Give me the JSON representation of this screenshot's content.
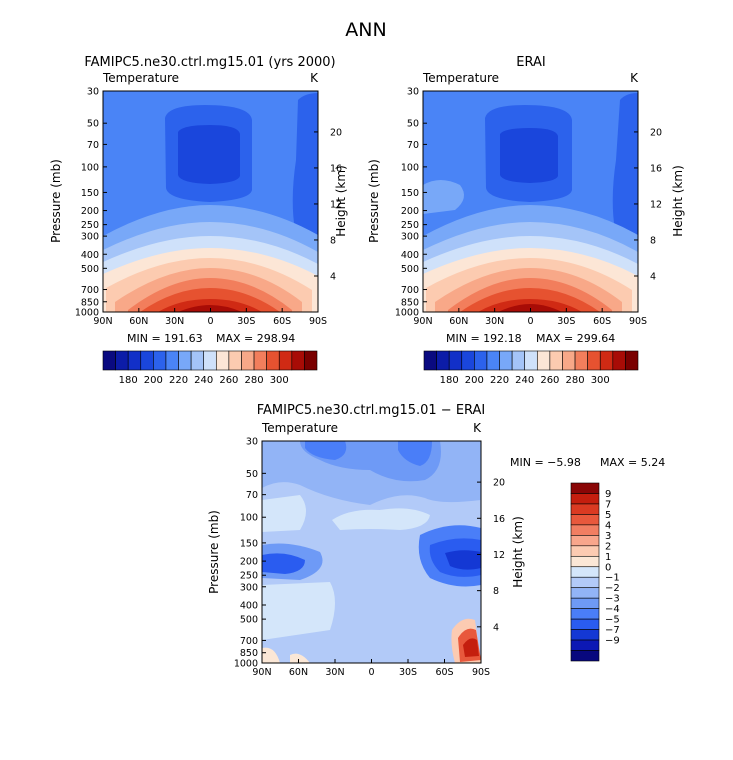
{
  "page_title": "ANN",
  "colors": {
    "temperature_scale": [
      "#0a0a80",
      "#0c1ca8",
      "#1230c8",
      "#1a46dc",
      "#2c62ec",
      "#4a84f6",
      "#78a8f8",
      "#a4c4f8",
      "#cfe1fa",
      "#fce6d6",
      "#fccbb0",
      "#f8a888",
      "#f27e5c",
      "#e65230",
      "#d02a14",
      "#a80c06",
      "#7a0000"
    ],
    "difference_scale": [
      "#08087e",
      "#0c18b4",
      "#1438d4",
      "#2a5cf0",
      "#4a7ef8",
      "#6e9af6",
      "#92b4f6",
      "#b2caf8",
      "#d4e6fa",
      "#fbe7d6",
      "#fccbb2",
      "#f8a68c",
      "#f17e62",
      "#e8583c",
      "#da3a22",
      "#c41e0e",
      "#8a0606"
    ]
  },
  "chart_data": [
    {
      "type": "heatmap",
      "panel": "model",
      "title": "FAMIPC5.ne30.ctrl.mg15.01 (yrs 2000)",
      "subtitle_left": "Temperature",
      "subtitle_right": "K",
      "ylabel": "Pressure (mb)",
      "ylabel_right": "Height (km)",
      "x_ticks": [
        "90N",
        "60N",
        "30N",
        "0",
        "30S",
        "60S",
        "90S"
      ],
      "y_ticks": [
        30,
        50,
        70,
        100,
        150,
        200,
        250,
        300,
        400,
        500,
        700,
        850,
        1000
      ],
      "height_ticks": [
        4,
        8,
        12,
        16,
        20
      ],
      "y_log_scale": true,
      "min_label": "MIN = 191.63",
      "max_label": "MAX = 298.94",
      "colorbar_ticks": [
        "180",
        "190",
        "200",
        "210",
        "220",
        "230",
        "240",
        "250",
        "260",
        "270",
        "280",
        "290",
        "300"
      ],
      "colorbar_levels": [
        180,
        190,
        200,
        210,
        220,
        230,
        240,
        250,
        260,
        270,
        280,
        290,
        300
      ],
      "field": {
        "min": 191.63,
        "max": 298.94,
        "tropopause_cold_core": "0",
        "surface_warm_max_lat": "0"
      }
    },
    {
      "type": "heatmap",
      "panel": "obs",
      "title": "ERAI",
      "subtitle_left": "Temperature",
      "subtitle_right": "K",
      "ylabel": "Pressure (mb)",
      "ylabel_right": "Height (km)",
      "x_ticks": [
        "90N",
        "60N",
        "30N",
        "0",
        "30S",
        "60S",
        "90S"
      ],
      "y_ticks": [
        30,
        50,
        70,
        100,
        150,
        200,
        250,
        300,
        400,
        500,
        700,
        850,
        1000
      ],
      "height_ticks": [
        4,
        8,
        12,
        16,
        20
      ],
      "y_log_scale": true,
      "min_label": "MIN = 192.18",
      "max_label": "MAX = 299.64",
      "colorbar_ticks": [
        "180",
        "190",
        "200",
        "210",
        "220",
        "230",
        "240",
        "250",
        "260",
        "270",
        "280",
        "290",
        "300"
      ],
      "colorbar_levels": [
        180,
        190,
        200,
        210,
        220,
        230,
        240,
        250,
        260,
        270,
        280,
        290,
        300
      ]
    },
    {
      "type": "heatmap",
      "panel": "difference",
      "title": "FAMIPC5.ne30.ctrl.mg15.01 − ERAI",
      "subtitle_left": "Temperature",
      "subtitle_right": "K",
      "ylabel": "Pressure (mb)",
      "ylabel_right": "Height (km)",
      "x_ticks": [
        "90N",
        "60N",
        "30N",
        "0",
        "30S",
        "60S",
        "90S"
      ],
      "y_ticks": [
        30,
        50,
        70,
        100,
        150,
        200,
        250,
        300,
        400,
        500,
        700,
        850,
        1000
      ],
      "height_ticks": [
        4,
        8,
        12,
        16,
        20
      ],
      "y_log_scale": true,
      "min_label": "MIN =   −5.98",
      "max_label": "MAX =   5.24",
      "colorbar_ticks": [
        "9",
        "7",
        "5",
        "4",
        "3",
        "2",
        "1",
        "0",
        "−1",
        "−2",
        "−3",
        "−4",
        "−5",
        "−7",
        "−9"
      ],
      "colorbar_levels": [
        9,
        7,
        5,
        4,
        3,
        2,
        1,
        0,
        -1,
        -2,
        -3,
        -4,
        -5,
        -7,
        -9
      ],
      "field": {
        "min": -5.98,
        "max": 5.24
      }
    }
  ]
}
